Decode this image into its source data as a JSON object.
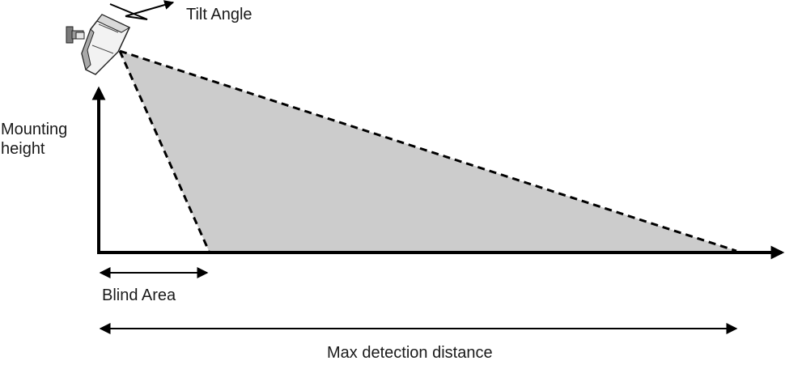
{
  "labels": {
    "tilt_angle": "Tilt Angle",
    "mounting_height": [
      "Mounting",
      "height"
    ],
    "blind_area": "Blind Area",
    "max_detection_distance": "Max detection distance"
  },
  "icons": {
    "camera": "camera-icon"
  },
  "colors": {
    "detection_zone_fill": "#cccccc",
    "lines": "#000000",
    "camera_body": "#f2f2f2",
    "camera_shade": "#a9a9a9"
  }
}
